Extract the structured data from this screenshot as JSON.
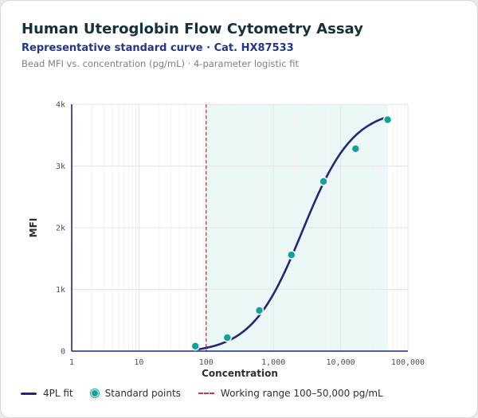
{
  "header": {
    "title": "Human Uteroglobin Flow Cytometry Assay",
    "subtitle": "Representative standard curve · Cat. HX87533",
    "caption": "Bead MFI vs. concentration (pg/mL) · 4-parameter logistic fit"
  },
  "colors": {
    "fit_line": "#23267a",
    "points": "#11a39a",
    "working_range_fill": "#e4f5f5",
    "working_range_marker": "#c0393f"
  },
  "chart_data": {
    "type": "scatter",
    "title": "Human Uteroglobin Flow Cytometry Assay",
    "xlabel": "Concentration",
    "ylabel": "MFI",
    "x_scale": "log",
    "xlim": [
      1,
      100000
    ],
    "ylim": [
      0,
      4000
    ],
    "x_ticks": [
      1,
      10,
      100,
      1000,
      10000,
      100000
    ],
    "x_tick_labels": [
      "1",
      "10",
      "100",
      "1,000",
      "10,000",
      "100,000"
    ],
    "y_ticks": [
      0,
      1000,
      2000,
      3000,
      4000
    ],
    "y_tick_labels": [
      "0",
      "1k",
      "2k",
      "3k",
      "4k"
    ],
    "grid": true,
    "legend_position": "bottom-left",
    "series": [
      {
        "name": "Standard points",
        "type": "scatter",
        "x": [
          69,
          206,
          617,
          1852,
          5556,
          16667,
          50000
        ],
        "y": [
          80,
          220,
          660,
          1560,
          2750,
          3280,
          3750
        ]
      },
      {
        "name": "4PL fit",
        "type": "line",
        "x_range": [
          69,
          50000
        ],
        "params": {
          "bottom": -35,
          "top": 3930,
          "ec50": 2700,
          "hill": 1.15
        }
      }
    ],
    "working_range": {
      "label": "Working range 100–50,000 pg/mL",
      "x_min": 100,
      "x_max": 50000
    }
  },
  "legend": {
    "fit": "4PL fit",
    "points": "Standard points",
    "range": "Working range 100–50,000 pg/mL"
  }
}
